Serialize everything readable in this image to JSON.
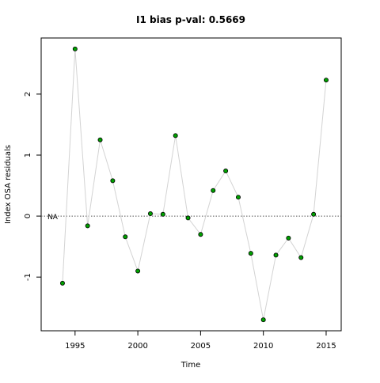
{
  "chart_data": {
    "type": "line",
    "title": "I1 bias p-val: 0.5669",
    "title_color": "#228b22",
    "x_label": "Time",
    "y_label": "Index OSA residuals",
    "x": [
      1994,
      1995,
      1996,
      1997,
      1998,
      1999,
      2000,
      2001,
      2002,
      2003,
      2004,
      2005,
      2006,
      2007,
      2008,
      2009,
      2010,
      2011,
      2012,
      2013,
      2014,
      2015
    ],
    "values": [
      -1.1,
      2.74,
      -0.16,
      1.25,
      0.58,
      -0.34,
      -0.9,
      0.04,
      0.03,
      1.32,
      -0.03,
      -0.3,
      0.42,
      0.74,
      0.31,
      -0.61,
      -1.7,
      -0.64,
      -0.36,
      -0.68,
      0.03,
      2.23
    ],
    "line_color": "#d3d3d3",
    "color": "#00a000",
    "xlim": [
      1992.3,
      2016.2
    ],
    "ylim": [
      -1.88,
      2.92
    ],
    "xticks": [
      1995,
      2000,
      2005,
      2010,
      2015
    ],
    "yticks": [
      -1,
      0,
      1,
      2
    ],
    "hline": 0,
    "hline_label": "NA"
  }
}
